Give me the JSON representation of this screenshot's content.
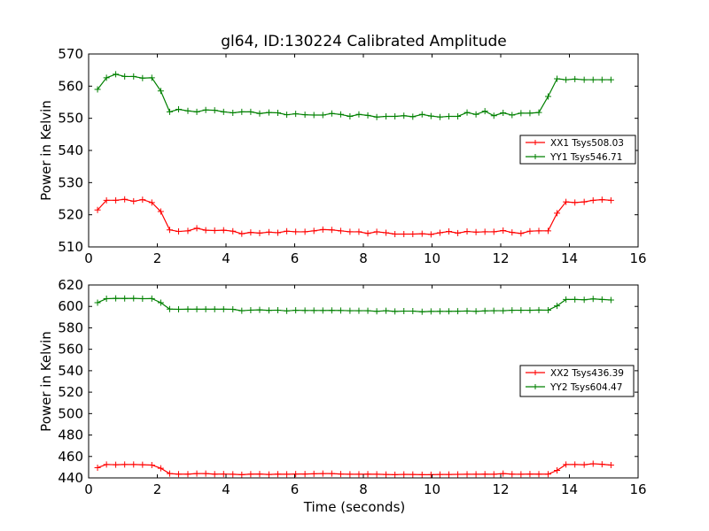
{
  "title": "gl64, ID:130224 Calibrated Amplitude",
  "colors": {
    "red": "#ff0000",
    "green": "#008000"
  },
  "chart_data": [
    {
      "type": "line",
      "title": "gl64, ID:130224 Calibrated Amplitude",
      "xlabel": "",
      "ylabel": "Power in Kelvin",
      "xlim": [
        0,
        16
      ],
      "ylim": [
        510,
        570
      ],
      "xticks": [
        "0",
        "2",
        "4",
        "6",
        "8",
        "10",
        "12",
        "14",
        "16"
      ],
      "yticks": [
        "510",
        "520",
        "530",
        "540",
        "550",
        "560",
        "570"
      ],
      "legend_position": "right",
      "x": [
        0.26,
        0.52,
        0.79,
        1.05,
        1.31,
        1.57,
        1.84,
        2.1,
        2.36,
        2.62,
        2.89,
        3.15,
        3.41,
        3.67,
        3.93,
        4.2,
        4.46,
        4.72,
        4.98,
        5.25,
        5.51,
        5.77,
        6.03,
        6.3,
        6.56,
        6.82,
        7.08,
        7.34,
        7.61,
        7.87,
        8.13,
        8.39,
        8.66,
        8.92,
        9.18,
        9.44,
        9.71,
        9.97,
        10.23,
        10.49,
        10.75,
        11.02,
        11.28,
        11.54,
        11.8,
        12.07,
        12.33,
        12.59,
        12.85,
        13.11,
        13.38,
        13.64,
        13.9,
        14.16,
        14.43,
        14.69,
        14.95,
        15.21
      ],
      "series": [
        {
          "name": "XX1 Tsys508.03",
          "color": "#ff0000",
          "values": [
            521.5,
            524.5,
            524.5,
            524.8,
            524.2,
            524.7,
            523.8,
            521.0,
            515.3,
            514.8,
            515.0,
            515.8,
            515.2,
            515.1,
            515.2,
            514.9,
            514.1,
            514.5,
            514.3,
            514.6,
            514.4,
            514.9,
            514.7,
            514.7,
            515.0,
            515.4,
            515.3,
            515.0,
            514.7,
            514.7,
            514.2,
            514.7,
            514.4,
            514.0,
            514.0,
            514.0,
            514.1,
            513.9,
            514.4,
            514.8,
            514.3,
            514.8,
            514.6,
            514.7,
            514.7,
            515.1,
            514.5,
            514.2,
            514.9,
            515.0,
            515.0,
            520.5,
            524.0,
            523.8,
            524.0,
            524.5,
            524.7,
            524.5
          ]
        },
        {
          "name": "YY1 Tsys546.71",
          "color": "#008000",
          "values": [
            559.0,
            562.6,
            563.7,
            563.0,
            563.0,
            562.5,
            562.6,
            558.5,
            552.0,
            552.8,
            552.3,
            552.0,
            552.6,
            552.5,
            552.0,
            551.7,
            552.0,
            552.0,
            551.5,
            551.8,
            551.7,
            551.1,
            551.4,
            551.1,
            551.0,
            551.0,
            551.5,
            551.2,
            550.6,
            551.2,
            550.9,
            550.4,
            550.6,
            550.6,
            550.8,
            550.5,
            551.2,
            550.7,
            550.4,
            550.6,
            550.6,
            551.8,
            551.2,
            552.2,
            550.8,
            551.7,
            551.0,
            551.6,
            551.6,
            551.8,
            556.8,
            562.3,
            562.0,
            562.2,
            562.0,
            562.0,
            562.0,
            562.0
          ]
        }
      ]
    },
    {
      "type": "line",
      "title": "",
      "xlabel": "Time (seconds)",
      "ylabel": "Power in Kelvin",
      "xlim": [
        0,
        16
      ],
      "ylim": [
        440,
        620
      ],
      "xticks": [
        "0",
        "2",
        "4",
        "6",
        "8",
        "10",
        "12",
        "14",
        "16"
      ],
      "yticks": [
        "440",
        "460",
        "480",
        "500",
        "520",
        "540",
        "560",
        "580",
        "600",
        "620"
      ],
      "legend_position": "right",
      "x": [
        0.26,
        0.52,
        0.79,
        1.05,
        1.31,
        1.57,
        1.84,
        2.1,
        2.36,
        2.62,
        2.89,
        3.15,
        3.41,
        3.67,
        3.93,
        4.2,
        4.46,
        4.72,
        4.98,
        5.25,
        5.51,
        5.77,
        6.03,
        6.3,
        6.56,
        6.82,
        7.08,
        7.34,
        7.61,
        7.87,
        8.13,
        8.39,
        8.66,
        8.92,
        9.18,
        9.44,
        9.71,
        9.97,
        10.23,
        10.49,
        10.75,
        11.02,
        11.28,
        11.54,
        11.8,
        12.07,
        12.33,
        12.59,
        12.85,
        13.11,
        13.38,
        13.64,
        13.9,
        14.16,
        14.43,
        14.69,
        14.95,
        15.21
      ],
      "series": [
        {
          "name": "XX2 Tsys436.39",
          "color": "#ff0000",
          "values": [
            449.5,
            452.5,
            452.3,
            452.5,
            452.5,
            452.3,
            452.0,
            449.0,
            444.0,
            443.5,
            443.5,
            444.0,
            444.0,
            443.5,
            443.6,
            443.4,
            443.0,
            443.5,
            443.6,
            443.2,
            443.5,
            443.4,
            443.6,
            443.6,
            443.8,
            444.0,
            444.0,
            443.6,
            443.4,
            443.4,
            443.5,
            443.4,
            443.2,
            443.0,
            443.3,
            443.2,
            443.0,
            443.0,
            443.2,
            443.2,
            443.3,
            443.4,
            443.4,
            443.5,
            443.4,
            444.0,
            443.5,
            443.4,
            443.6,
            443.5,
            443.5,
            447.0,
            452.5,
            452.5,
            452.3,
            453.2,
            452.7,
            452.0
          ]
        },
        {
          "name": "YY2 Tsys604.47",
          "color": "#008000",
          "values": [
            603.5,
            607.2,
            607.5,
            607.4,
            607.5,
            607.2,
            607.3,
            603.5,
            597.5,
            597.3,
            597.4,
            597.4,
            597.4,
            597.4,
            597.4,
            597.3,
            596.0,
            596.5,
            596.8,
            596.3,
            596.5,
            595.8,
            596.4,
            596.2,
            596.2,
            596.2,
            596.3,
            596.2,
            596.0,
            596.0,
            596.0,
            595.4,
            596.0,
            595.3,
            595.6,
            595.6,
            595.0,
            595.3,
            595.4,
            595.4,
            595.5,
            595.7,
            595.4,
            595.8,
            596.0,
            596.0,
            596.4,
            596.4,
            596.4,
            596.6,
            596.5,
            600.5,
            606.5,
            606.5,
            606.2,
            607.0,
            606.5,
            606.0
          ]
        }
      ]
    }
  ]
}
